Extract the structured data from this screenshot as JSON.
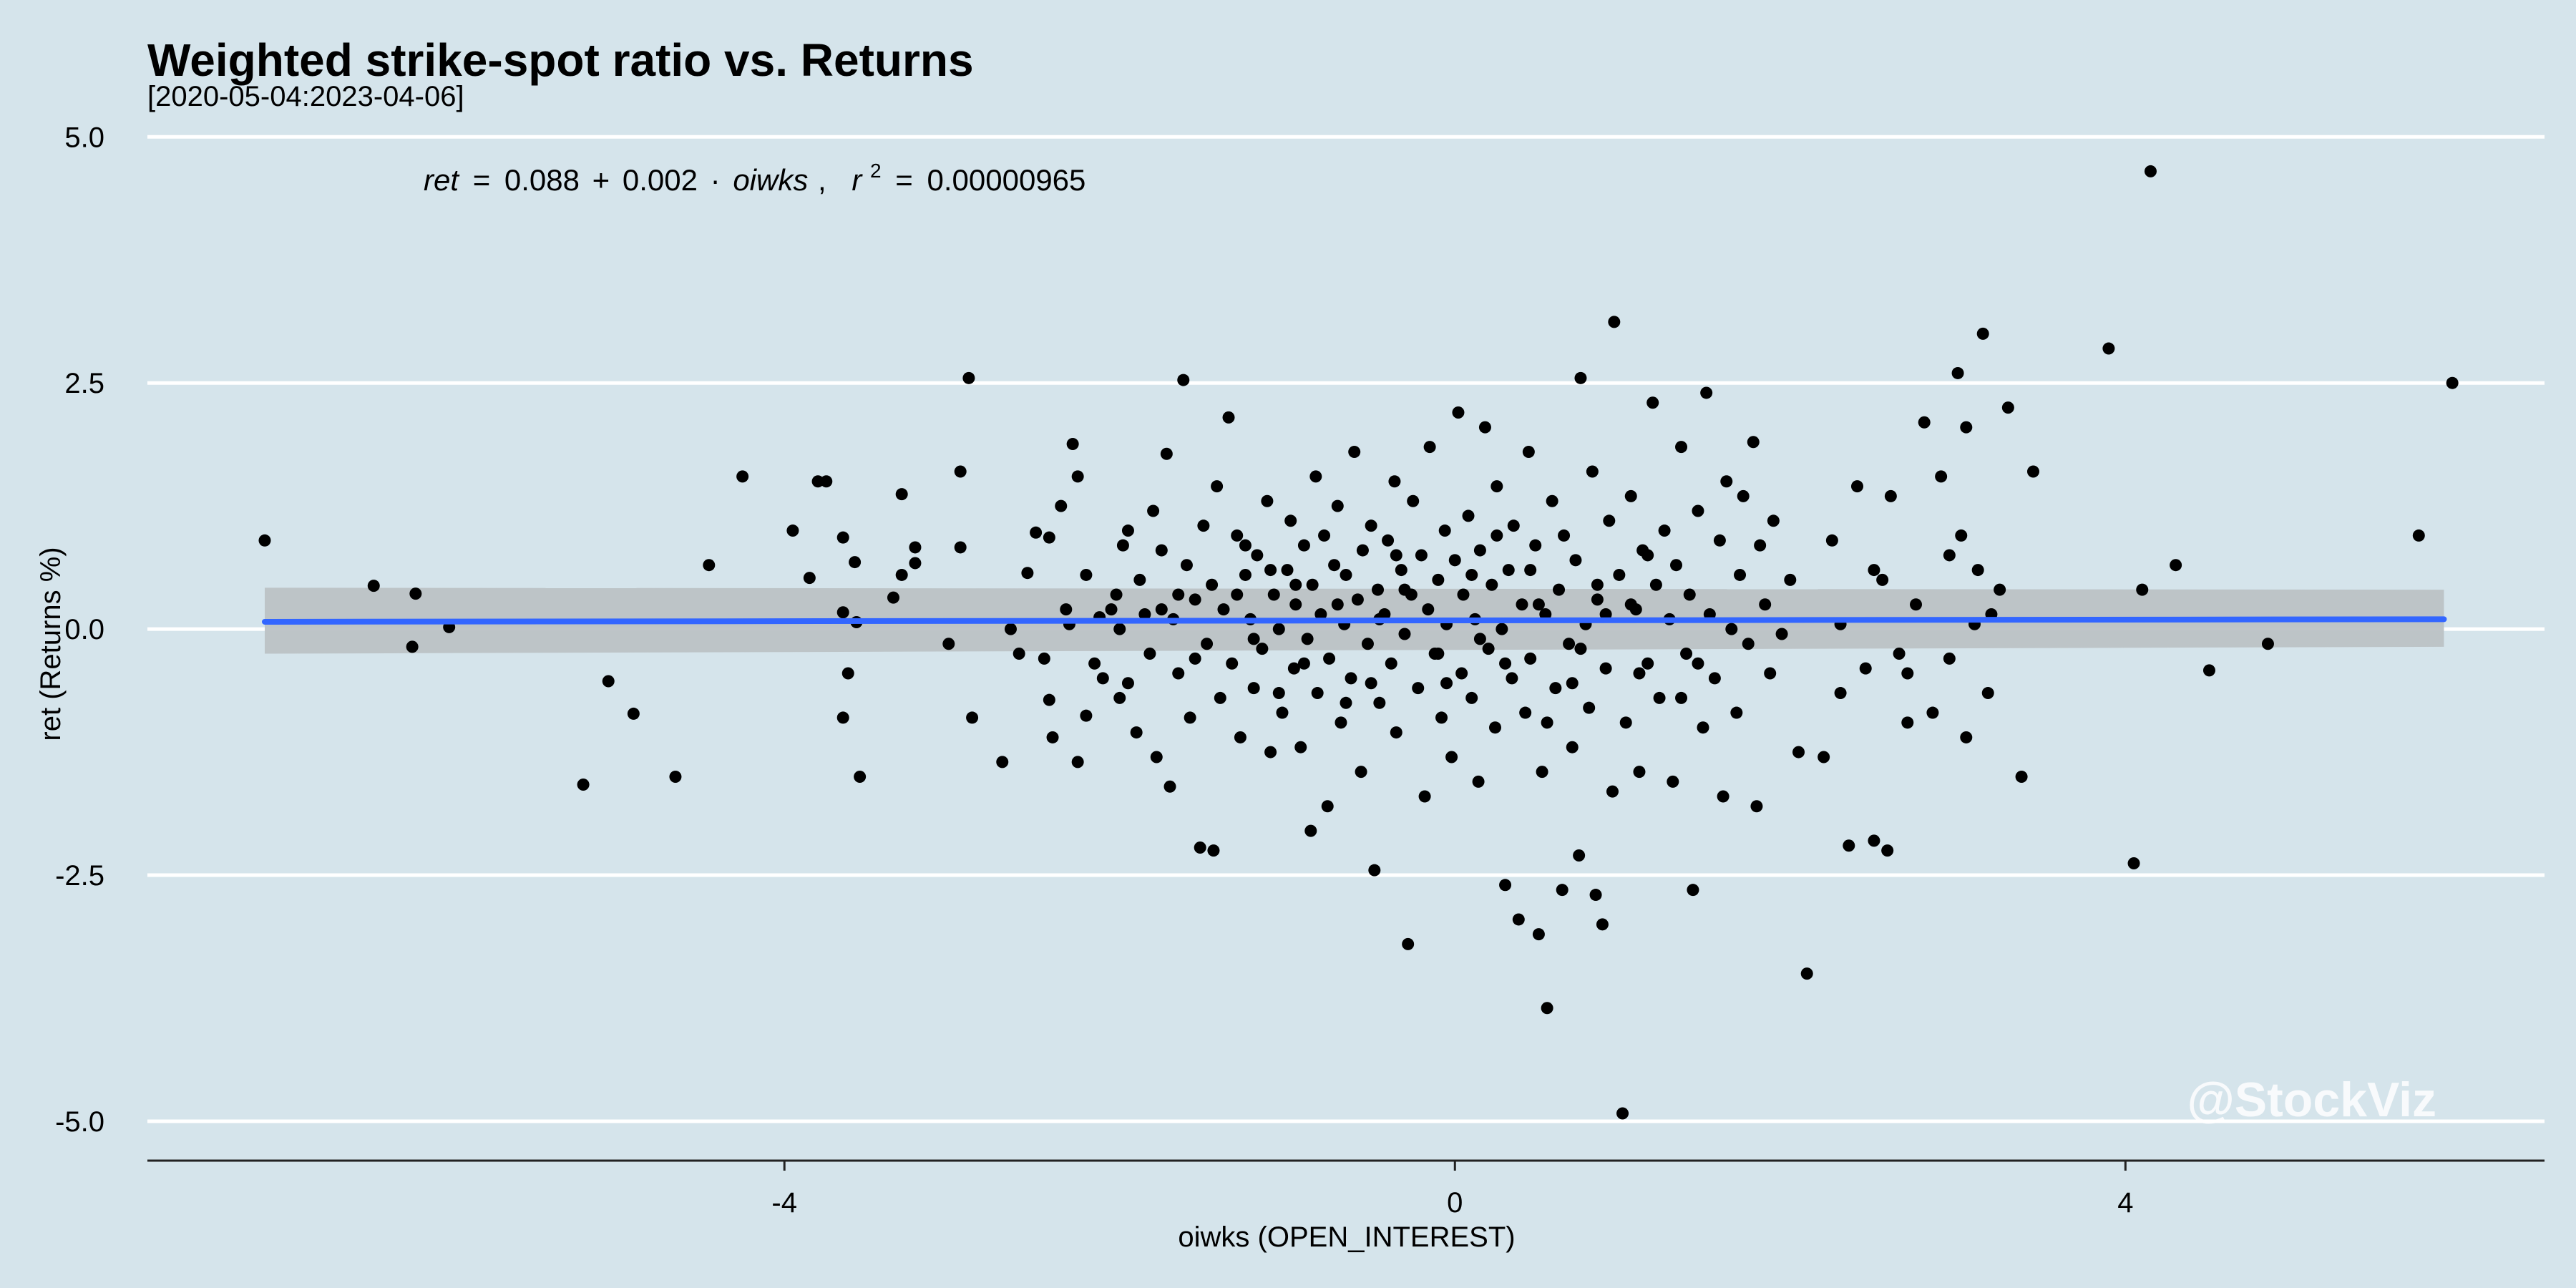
{
  "chart_data": {
    "type": "scatter",
    "title": "Weighted strike-spot ratio vs. Returns",
    "subtitle": "[2020-05-04:2023-04-06]",
    "xlabel": "oiwks (OPEN_INTEREST)",
    "ylabel": "ret (Returns %)",
    "xlim": [
      -7.8,
      6.5
    ],
    "ylim": [
      -5.4,
      5.3
    ],
    "x_ticks": [
      -4,
      0,
      4
    ],
    "x_tick_labels": [
      "-4",
      "0",
      "4"
    ],
    "y_ticks": [
      5.0,
      2.5,
      0.0,
      -2.5,
      -5.0
    ],
    "y_tick_labels": [
      "5.0",
      "2.5",
      "0.0",
      "-2.5",
      "-5.0"
    ],
    "grid": "horizontal",
    "colors": {
      "background": "#d5e4eb",
      "points": "#000000",
      "fit_line": "#3366ff",
      "ribbon": "#bcc2c5",
      "grid": "#ffffff"
    },
    "equation": {
      "lhs": "ret",
      "equals": "=",
      "intercept": "0.088",
      "plus": "+",
      "slope": "0.002",
      "dot": "·",
      "var": "oiwks",
      "sep": ",",
      "r2_base": "r",
      "r2_exp": "2",
      "r2_eq": "=",
      "r2_value": "0.00000965"
    },
    "fit": {
      "intercept": 0.088,
      "slope": 0.002,
      "x_range": [
        -7.1,
        5.9
      ],
      "ci_at_min": [
        -0.25,
        0.42
      ],
      "ci_at_max": [
        -0.18,
        0.4
      ]
    },
    "points": [
      [
        -7.1,
        0.9
      ],
      [
        -6.45,
        0.44
      ],
      [
        -6.2,
        0.36
      ],
      [
        -6.22,
        -0.18
      ],
      [
        -6.0,
        0.02
      ],
      [
        -5.2,
        -1.58
      ],
      [
        -5.05,
        -0.53
      ],
      [
        -4.9,
        -0.86
      ],
      [
        -4.65,
        -1.5
      ],
      [
        -4.45,
        0.65
      ],
      [
        -4.25,
        1.55
      ],
      [
        -3.95,
        1.0
      ],
      [
        -3.85,
        0.52
      ],
      [
        -3.8,
        1.5
      ],
      [
        -3.75,
        1.5
      ],
      [
        -3.65,
        0.93
      ],
      [
        -3.65,
        0.17
      ],
      [
        -3.62,
        -0.45
      ],
      [
        -3.65,
        -0.9
      ],
      [
        -3.58,
        0.68
      ],
      [
        -3.57,
        0.07
      ],
      [
        -3.55,
        -1.5
      ],
      [
        -3.3,
        0.55
      ],
      [
        -3.22,
        0.83
      ],
      [
        -3.22,
        0.67
      ],
      [
        -3.35,
        0.32
      ],
      [
        -3.3,
        1.37
      ],
      [
        -3.02,
        -0.15
      ],
      [
        -2.9,
        2.55
      ],
      [
        -2.95,
        1.6
      ],
      [
        -2.95,
        0.83
      ],
      [
        -2.88,
        -0.9
      ],
      [
        -2.7,
        -1.35
      ],
      [
        -2.65,
        0.0
      ],
      [
        -2.6,
        -0.25
      ],
      [
        -2.55,
        0.57
      ],
      [
        -2.5,
        0.98
      ],
      [
        -2.45,
        -0.3
      ],
      [
        -2.42,
        -0.72
      ],
      [
        -2.42,
        0.93
      ],
      [
        -2.4,
        -1.1
      ],
      [
        -2.35,
        1.25
      ],
      [
        -2.32,
        0.2
      ],
      [
        -2.3,
        0.05
      ],
      [
        -2.28,
        1.88
      ],
      [
        -2.25,
        1.55
      ],
      [
        -2.25,
        -1.35
      ],
      [
        -2.2,
        -0.88
      ],
      [
        -2.2,
        0.55
      ],
      [
        -2.15,
        -0.35
      ],
      [
        -2.12,
        0.12
      ],
      [
        -2.1,
        -0.5
      ],
      [
        -2.05,
        0.2
      ],
      [
        -2.02,
        0.35
      ],
      [
        -2.0,
        0.0
      ],
      [
        -1.98,
        0.85
      ],
      [
        -1.95,
        -0.55
      ],
      [
        -1.95,
        1.0
      ],
      [
        -1.9,
        -1.05
      ],
      [
        -1.88,
        0.5
      ],
      [
        -1.85,
        0.15
      ],
      [
        -1.82,
        -0.25
      ],
      [
        -1.8,
        1.2
      ],
      [
        -1.78,
        -1.3
      ],
      [
        -1.75,
        0.8
      ],
      [
        -1.72,
        1.78
      ],
      [
        -1.7,
        -1.6
      ],
      [
        -1.68,
        0.1
      ],
      [
        -1.65,
        -0.45
      ],
      [
        -1.62,
        2.53
      ],
      [
        -1.6,
        0.65
      ],
      [
        -1.58,
        -0.9
      ],
      [
        -1.55,
        0.3
      ],
      [
        -1.52,
        -2.22
      ],
      [
        -1.5,
        1.05
      ],
      [
        -1.48,
        -0.15
      ],
      [
        -1.45,
        0.45
      ],
      [
        -1.44,
        -2.25
      ],
      [
        -1.42,
        1.45
      ],
      [
        -1.4,
        -0.7
      ],
      [
        -1.38,
        0.2
      ],
      [
        -1.35,
        2.15
      ],
      [
        -1.33,
        -0.35
      ],
      [
        -1.3,
        0.95
      ],
      [
        -1.28,
        -1.1
      ],
      [
        -1.25,
        0.55
      ],
      [
        -1.22,
        0.1
      ],
      [
        -1.2,
        -0.6
      ],
      [
        -1.18,
        0.75
      ],
      [
        -1.15,
        -0.2
      ],
      [
        -1.12,
        1.3
      ],
      [
        -1.1,
        -1.25
      ],
      [
        -1.08,
        0.35
      ],
      [
        -1.05,
        0.0
      ],
      [
        -1.03,
        -0.85
      ],
      [
        -1.0,
        0.6
      ],
      [
        -0.98,
        1.1
      ],
      [
        -0.96,
        -0.4
      ],
      [
        -0.95,
        0.25
      ],
      [
        -0.92,
        -1.2
      ],
      [
        -0.9,
        0.85
      ],
      [
        -0.88,
        -0.1
      ],
      [
        -0.86,
        -2.05
      ],
      [
        -0.85,
        0.45
      ],
      [
        -0.83,
        1.55
      ],
      [
        -0.82,
        -0.65
      ],
      [
        -0.8,
        0.15
      ],
      [
        -0.78,
        0.95
      ],
      [
        -0.76,
        -1.8
      ],
      [
        -0.75,
        -0.3
      ],
      [
        -0.72,
        0.65
      ],
      [
        -0.7,
        1.25
      ],
      [
        -0.68,
        -0.95
      ],
      [
        -0.66,
        0.05
      ],
      [
        -0.65,
        0.55
      ],
      [
        -0.62,
        -0.5
      ],
      [
        -0.6,
        1.8
      ],
      [
        -0.58,
        0.3
      ],
      [
        -0.56,
        -1.45
      ],
      [
        -0.55,
        0.8
      ],
      [
        -0.52,
        -0.15
      ],
      [
        -0.5,
        1.05
      ],
      [
        -0.48,
        -2.45
      ],
      [
        -0.46,
        0.4
      ],
      [
        -0.45,
        -0.75
      ],
      [
        -0.42,
        0.15
      ],
      [
        -0.4,
        0.9
      ],
      [
        -0.38,
        -0.35
      ],
      [
        -0.36,
        1.5
      ],
      [
        -0.35,
        -1.05
      ],
      [
        -0.32,
        0.6
      ],
      [
        -0.3,
        -0.05
      ],
      [
        -0.28,
        -3.2
      ],
      [
        -0.26,
        0.35
      ],
      [
        -0.25,
        1.3
      ],
      [
        -0.22,
        -0.6
      ],
      [
        -0.2,
        0.75
      ],
      [
        -0.18,
        -1.7
      ],
      [
        -0.16,
        0.2
      ],
      [
        -0.15,
        1.85
      ],
      [
        -0.12,
        -0.25
      ],
      [
        -0.1,
        0.5
      ],
      [
        -0.08,
        -0.9
      ],
      [
        -0.06,
        1.0
      ],
      [
        -0.05,
        0.05
      ],
      [
        -0.02,
        -1.3
      ],
      [
        0.0,
        0.7
      ],
      [
        0.02,
        2.2
      ],
      [
        0.04,
        -0.45
      ],
      [
        0.05,
        0.35
      ],
      [
        0.08,
        1.15
      ],
      [
        0.1,
        -0.7
      ],
      [
        0.12,
        0.1
      ],
      [
        0.14,
        -1.55
      ],
      [
        0.15,
        0.8
      ],
      [
        0.18,
        2.05
      ],
      [
        0.2,
        -0.2
      ],
      [
        0.22,
        0.45
      ],
      [
        0.24,
        -1.0
      ],
      [
        0.25,
        1.45
      ],
      [
        0.28,
        0.0
      ],
      [
        0.3,
        -2.6
      ],
      [
        0.32,
        0.6
      ],
      [
        0.34,
        -0.5
      ],
      [
        0.35,
        1.05
      ],
      [
        0.38,
        -2.95
      ],
      [
        0.4,
        0.25
      ],
      [
        0.42,
        -0.85
      ],
      [
        0.44,
        1.8
      ],
      [
        0.45,
        -0.3
      ],
      [
        0.48,
        0.85
      ],
      [
        0.5,
        -3.1
      ],
      [
        0.52,
        -1.45
      ],
      [
        0.54,
        0.15
      ],
      [
        0.55,
        -3.85
      ],
      [
        0.58,
        1.3
      ],
      [
        0.6,
        -0.6
      ],
      [
        0.62,
        0.4
      ],
      [
        0.64,
        -2.65
      ],
      [
        0.65,
        0.95
      ],
      [
        0.68,
        -0.15
      ],
      [
        0.7,
        -1.2
      ],
      [
        0.72,
        0.7
      ],
      [
        0.74,
        -2.3
      ],
      [
        0.75,
        2.55
      ],
      [
        0.78,
        0.05
      ],
      [
        0.8,
        -0.8
      ],
      [
        0.82,
        1.6
      ],
      [
        0.84,
        -2.7
      ],
      [
        0.85,
        0.3
      ],
      [
        0.88,
        -3.0
      ],
      [
        0.9,
        -0.4
      ],
      [
        0.92,
        1.1
      ],
      [
        0.94,
        -1.65
      ],
      [
        0.95,
        3.12
      ],
      [
        0.98,
        0.55
      ],
      [
        1.0,
        -4.92
      ],
      [
        1.02,
        -0.95
      ],
      [
        1.05,
        1.35
      ],
      [
        1.08,
        0.2
      ],
      [
        1.1,
        -1.45
      ],
      [
        1.12,
        0.8
      ],
      [
        1.15,
        -0.35
      ],
      [
        1.18,
        2.3
      ],
      [
        1.2,
        0.45
      ],
      [
        1.22,
        -0.7
      ],
      [
        1.25,
        1.0
      ],
      [
        1.28,
        0.1
      ],
      [
        1.3,
        -1.55
      ],
      [
        1.32,
        0.65
      ],
      [
        1.35,
        1.85
      ],
      [
        1.38,
        -0.25
      ],
      [
        1.4,
        0.35
      ],
      [
        1.42,
        -2.65
      ],
      [
        1.45,
        1.2
      ],
      [
        1.48,
        -1.0
      ],
      [
        1.5,
        2.4
      ],
      [
        1.52,
        0.15
      ],
      [
        1.55,
        -0.5
      ],
      [
        1.58,
        0.9
      ],
      [
        1.6,
        -1.7
      ],
      [
        1.62,
        1.5
      ],
      [
        1.65,
        0.0
      ],
      [
        1.68,
        -0.85
      ],
      [
        1.7,
        0.55
      ],
      [
        1.72,
        1.35
      ],
      [
        1.75,
        -0.15
      ],
      [
        1.78,
        1.9
      ],
      [
        1.8,
        -1.8
      ],
      [
        1.82,
        0.85
      ],
      [
        1.85,
        0.25
      ],
      [
        1.88,
        -0.45
      ],
      [
        1.9,
        1.1
      ],
      [
        1.95,
        -0.05
      ],
      [
        2.0,
        0.5
      ],
      [
        2.05,
        -1.25
      ],
      [
        2.1,
        -3.5
      ],
      [
        2.2,
        -1.3
      ],
      [
        2.25,
        0.9
      ],
      [
        2.3,
        -0.65
      ],
      [
        2.35,
        -2.2
      ],
      [
        2.4,
        1.45
      ],
      [
        2.45,
        -0.4
      ],
      [
        2.5,
        -2.15
      ],
      [
        2.55,
        0.5
      ],
      [
        2.58,
        -2.25
      ],
      [
        2.6,
        1.35
      ],
      [
        2.65,
        -0.25
      ],
      [
        2.7,
        -0.95
      ],
      [
        2.75,
        0.25
      ],
      [
        2.8,
        2.1
      ],
      [
        2.85,
        -0.85
      ],
      [
        2.9,
        1.55
      ],
      [
        2.95,
        -0.3
      ],
      [
        3.0,
        2.6
      ],
      [
        3.02,
        0.95
      ],
      [
        3.05,
        2.05
      ],
      [
        3.1,
        0.05
      ],
      [
        3.15,
        3.0
      ],
      [
        3.18,
        -0.65
      ],
      [
        3.2,
        0.15
      ],
      [
        3.25,
        0.4
      ],
      [
        3.3,
        2.25
      ],
      [
        3.38,
        -1.5
      ],
      [
        3.45,
        1.6
      ],
      [
        3.9,
        2.85
      ],
      [
        4.05,
        -2.38
      ],
      [
        4.1,
        0.4
      ],
      [
        4.15,
        4.65
      ],
      [
        4.3,
        0.65
      ],
      [
        4.5,
        -0.42
      ],
      [
        4.85,
        -0.15
      ],
      [
        5.75,
        0.95
      ],
      [
        5.95,
        2.5
      ],
      [
        -1.3,
        0.35
      ],
      [
        -1.2,
        -0.1
      ],
      [
        -1.1,
        0.6
      ],
      [
        -0.9,
        -0.35
      ],
      [
        -0.7,
        0.25
      ],
      [
        -0.5,
        -0.55
      ],
      [
        -0.3,
        0.4
      ],
      [
        -0.1,
        -0.25
      ],
      [
        0.1,
        0.55
      ],
      [
        0.3,
        -0.35
      ],
      [
        0.5,
        0.25
      ],
      [
        0.7,
        -0.55
      ],
      [
        0.9,
        0.15
      ],
      [
        1.1,
        -0.45
      ],
      [
        -1.55,
        -0.3
      ],
      [
        -1.25,
        0.85
      ],
      [
        -0.95,
        0.45
      ],
      [
        -0.65,
        -0.75
      ],
      [
        -0.35,
        0.75
      ],
      [
        -0.05,
        -0.55
      ],
      [
        0.25,
        0.95
      ],
      [
        0.55,
        -0.95
      ],
      [
        0.85,
        0.45
      ],
      [
        1.15,
        0.75
      ],
      [
        1.45,
        -0.35
      ],
      [
        -1.65,
        0.35
      ],
      [
        -1.05,
        -0.65
      ],
      [
        -0.45,
        0.1
      ],
      [
        0.15,
        -0.1
      ],
      [
        0.45,
        0.6
      ],
      [
        0.75,
        -0.2
      ],
      [
        1.05,
        0.25
      ],
      [
        1.35,
        -0.7
      ],
      [
        -2.0,
        -0.7
      ],
      [
        -1.75,
        0.2
      ],
      [
        2.3,
        0.05
      ],
      [
        2.5,
        0.6
      ],
      [
        2.7,
        -0.45
      ],
      [
        2.95,
        0.75
      ],
      [
        3.05,
        -1.1
      ],
      [
        3.12,
        0.6
      ]
    ],
    "watermark": "@StockViz"
  }
}
